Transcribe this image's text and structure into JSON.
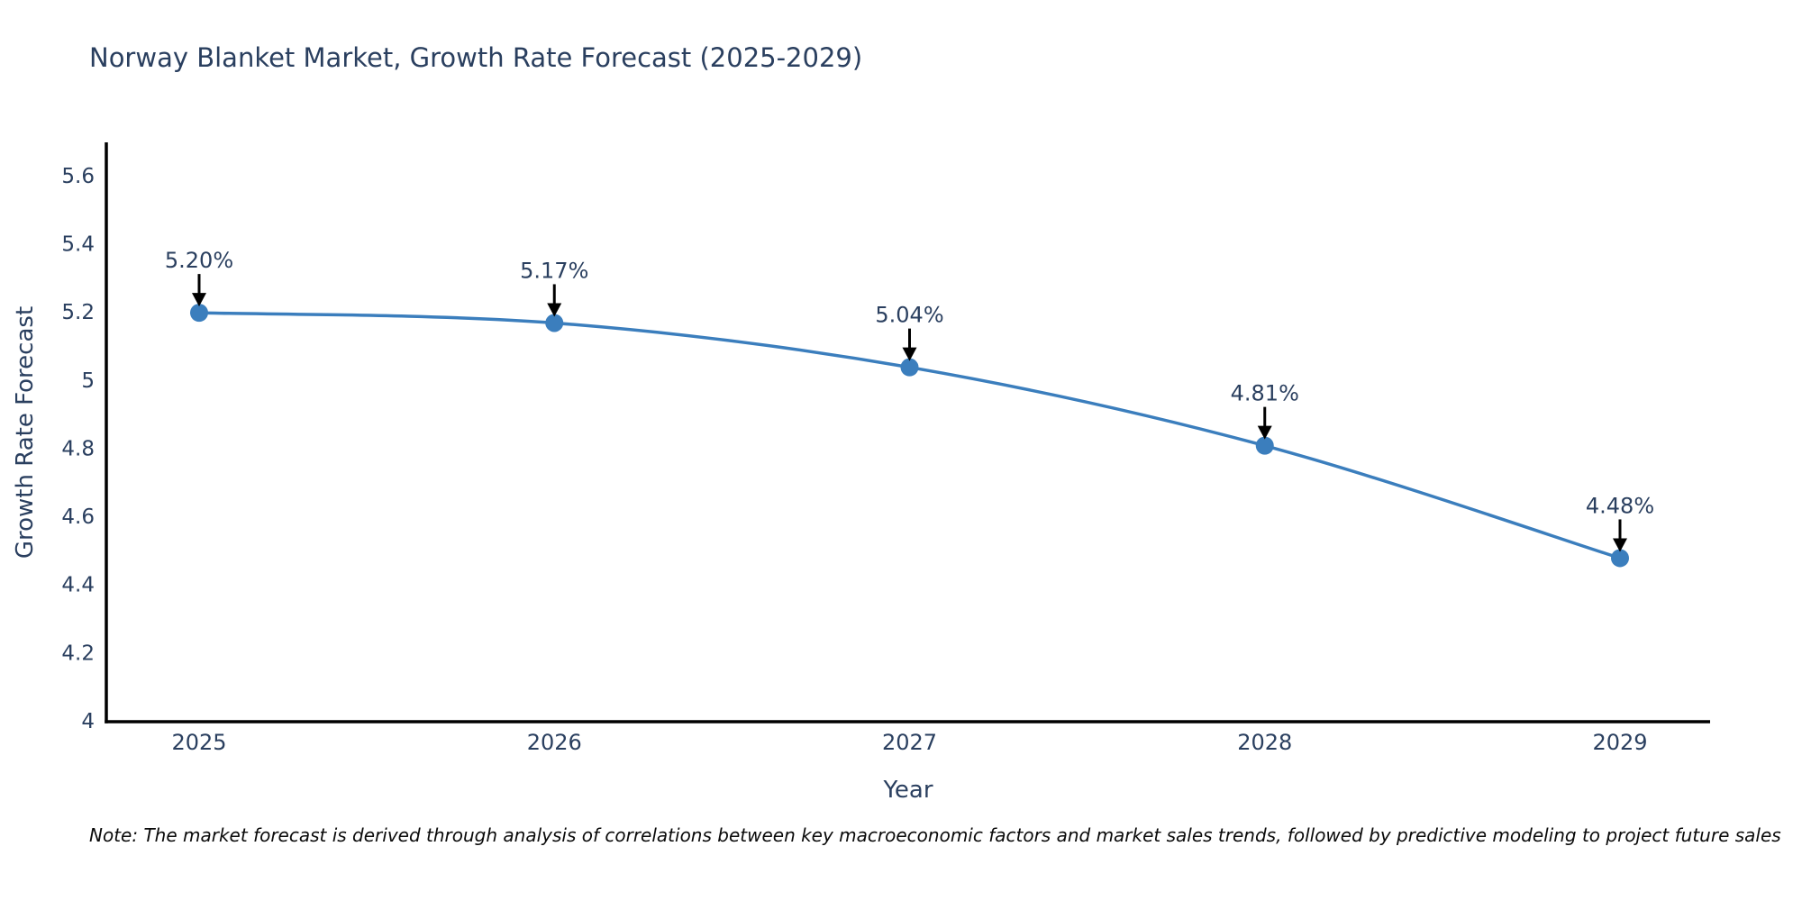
{
  "chart": {
    "title": "Norway Blanket Market, Growth Rate Forecast (2025-2029)",
    "xlabel": "Year",
    "ylabel": "Growth Rate Forecast",
    "note": "Note: The market forecast is derived through analysis of correlations between key macroeconomic factors and market sales trends, followed by predictive modeling to project future sales"
  },
  "chart_data": {
    "type": "line",
    "title": "Norway Blanket Market, Growth Rate Forecast (2025-2029)",
    "xlabel": "Year",
    "ylabel": "Growth Rate Forecast",
    "x": [
      2025,
      2026,
      2027,
      2028,
      2029
    ],
    "series": [
      {
        "name": "Growth Rate Forecast",
        "values": [
          5.2,
          5.17,
          5.04,
          4.81,
          4.48
        ]
      }
    ],
    "point_labels": [
      "5.20%",
      "5.17%",
      "5.04%",
      "4.81%",
      "4.48%"
    ],
    "ylim": [
      4.0,
      5.7
    ],
    "yticks": [
      4,
      4.2,
      4.4,
      4.6,
      4.8,
      5,
      5.2,
      5.4,
      5.6
    ],
    "line_shape": "spline",
    "grid": false,
    "legend_position": "none",
    "line_color": "#3b7ebd",
    "marker_color": "#3b7ebd",
    "arrow_color": "#000000",
    "axis_color": "#000000",
    "tick_color": "#2a3f5f",
    "annotation_color": "#2a3f5f"
  }
}
